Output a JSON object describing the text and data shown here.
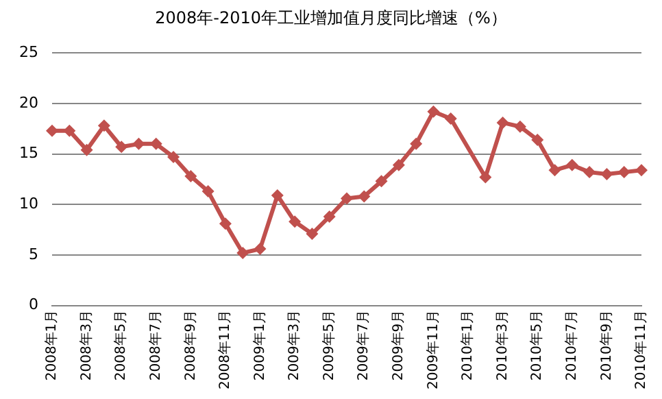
{
  "chart_data": {
    "type": "line",
    "title": "2008年-2010年工业增加值月度同比增速（%）",
    "categories": [
      "2008年1月",
      null,
      "2008年3月",
      null,
      "2008年5月",
      null,
      "2008年7月",
      null,
      "2008年9月",
      null,
      "2008年11月",
      null,
      "2009年1月",
      null,
      "2009年3月",
      null,
      "2009年5月",
      null,
      "2009年7月",
      null,
      "2009年9月",
      null,
      "2009年11月",
      null,
      "2010年1月",
      null,
      "2010年3月",
      null,
      "2010年5月",
      null,
      "2010年7月",
      null,
      "2010年9月",
      null,
      "2010年11月"
    ],
    "series": [
      {
        "color": "#c0504d",
        "values": [
          17.3,
          17.3,
          15.4,
          17.8,
          15.7,
          16.0,
          16.0,
          14.7,
          12.8,
          11.3,
          8.1,
          5.2,
          5.6,
          10.9,
          8.3,
          7.1,
          8.8,
          10.6,
          10.8,
          12.3,
          13.9,
          16.0,
          19.2,
          18.5,
          null,
          12.7,
          18.1,
          17.7,
          16.4,
          13.4,
          13.9,
          13.2,
          13.0,
          13.2,
          13.4
        ]
      }
    ],
    "ylim": [
      0,
      25
    ],
    "yticks": [
      0,
      5,
      10,
      15,
      20,
      25
    ],
    "grid": "y",
    "legend": false,
    "marker": "diamond",
    "line_style": "solid"
  }
}
